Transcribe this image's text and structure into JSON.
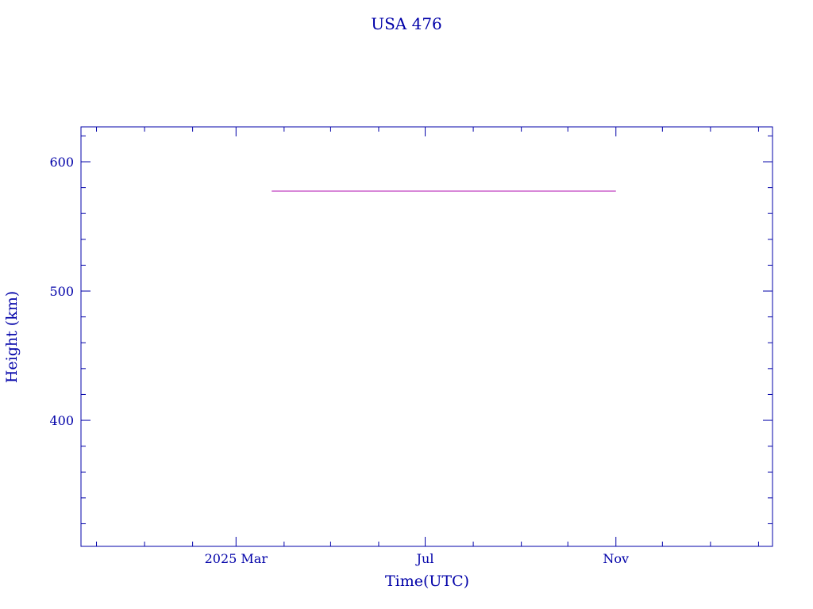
{
  "chart_data": {
    "type": "line",
    "title": "USA 476",
    "xlabel": "Time(UTC)",
    "ylabel": "Height (km)",
    "xlim": [
      "2024-11-21",
      "2026-02-10"
    ],
    "ylim": [
      302.5,
      627
    ],
    "x_ticks": [
      {
        "date": "2025-03-01",
        "label": "2025 Mar"
      },
      {
        "date": "2025-07-01",
        "label": "Jul"
      },
      {
        "date": "2025-11-01",
        "label": "Nov"
      }
    ],
    "y_ticks": [
      400,
      500,
      600
    ],
    "grid": false,
    "series": [
      {
        "x": [
          "2025-03-24",
          "2025-11-01"
        ],
        "y": [
          577.3,
          577.3
        ],
        "color": "#c040c0"
      }
    ],
    "colors": {
      "axis": "#0000a8",
      "text": "#0000a8"
    }
  }
}
